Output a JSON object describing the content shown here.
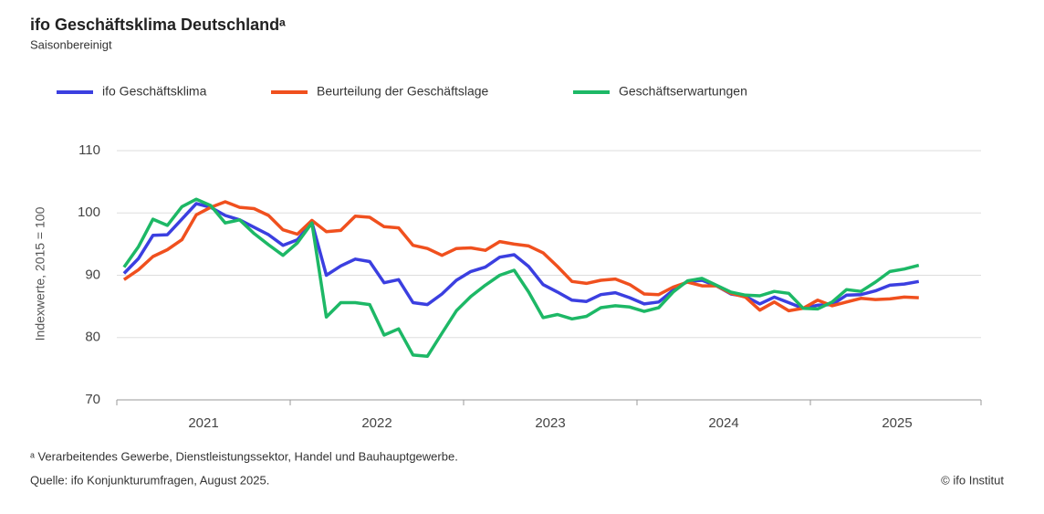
{
  "chart_data": {
    "type": "line",
    "title": "ifo Geschäftsklima Deutschlandᵃ",
    "subtitle": "Saisonbereinigt",
    "y_label": "Indexwerte, 2015 = 100",
    "footnote": "ᵃ Verarbeitendes Gewerbe, Dienstleistungssektor, Handel und Bauhauptgewerbe.",
    "source": "Quelle: ifo Konjunkturumfragen, August 2025.",
    "copyright": "© ifo Institut",
    "categories": [
      null,
      null,
      null,
      null,
      null,
      null,
      "2021",
      null,
      null,
      null,
      null,
      null,
      null,
      null,
      null,
      null,
      null,
      null,
      "2022",
      null,
      null,
      null,
      null,
      null,
      null,
      null,
      null,
      null,
      null,
      null,
      "2023",
      null,
      null,
      null,
      null,
      null,
      null,
      null,
      null,
      null,
      null,
      null,
      "2024",
      null,
      null,
      null,
      null,
      null,
      null,
      null,
      null,
      null,
      null,
      null,
      "2025",
      null
    ],
    "ylim": [
      70,
      110
    ],
    "yticks": [
      70,
      80,
      90,
      100,
      110
    ],
    "grid": true,
    "legend": "top",
    "series": [
      {
        "name": "ifo Geschäftsklima",
        "color": "#3b3fe0",
        "values": [
          90.3,
          92.7,
          96.4,
          96.5,
          99.0,
          101.5,
          100.9,
          99.6,
          98.9,
          97.7,
          96.5,
          94.8,
          95.7,
          98.5,
          90.0,
          91.5,
          92.6,
          92.2,
          88.8,
          89.3,
          85.6,
          85.3,
          87.0,
          89.2,
          90.6,
          91.3,
          92.9,
          93.3,
          91.4,
          88.5,
          87.3,
          86.0,
          85.8,
          86.9,
          87.2,
          86.4,
          85.4,
          85.7,
          87.6,
          89.0,
          89.2,
          88.3,
          87.0,
          86.6,
          85.4,
          86.5,
          85.6,
          84.7,
          85.2,
          85.3,
          86.8,
          86.9,
          87.5,
          88.4,
          88.6,
          89.0
        ]
      },
      {
        "name": "Beurteilung der Geschäftslage",
        "color": "#f0501e",
        "values": [
          89.3,
          90.9,
          93.0,
          94.1,
          95.7,
          99.7,
          100.9,
          101.8,
          100.9,
          100.7,
          99.6,
          97.3,
          96.6,
          98.8,
          97.0,
          97.2,
          99.5,
          99.3,
          97.8,
          97.6,
          94.8,
          94.3,
          93.2,
          94.3,
          94.4,
          94.0,
          95.4,
          95.0,
          94.7,
          93.6,
          91.4,
          89.0,
          88.7,
          89.2,
          89.4,
          88.5,
          87.0,
          86.9,
          88.1,
          88.9,
          88.3,
          88.3,
          87.1,
          86.5,
          84.4,
          85.7,
          84.3,
          84.7,
          86.0,
          85.1,
          85.7,
          86.3,
          86.1,
          86.2,
          86.5,
          86.4
        ]
      },
      {
        "name": "Geschäftserwartungen",
        "color": "#1db866",
        "values": [
          91.3,
          94.6,
          99.0,
          98.0,
          101.0,
          102.2,
          101.2,
          98.4,
          98.9,
          96.7,
          94.9,
          93.2,
          95.2,
          98.4,
          83.3,
          85.6,
          85.6,
          85.3,
          80.4,
          81.4,
          77.2,
          77.0,
          80.7,
          84.3,
          86.6,
          88.4,
          90.0,
          90.8,
          87.3,
          83.2,
          83.7,
          83.0,
          83.4,
          84.8,
          85.1,
          84.9,
          84.2,
          84.8,
          87.3,
          89.1,
          89.5,
          88.4,
          87.3,
          86.8,
          86.7,
          87.4,
          87.1,
          84.7,
          84.6,
          85.7,
          87.7,
          87.4,
          88.9,
          90.6,
          91.0,
          91.6
        ]
      }
    ]
  }
}
